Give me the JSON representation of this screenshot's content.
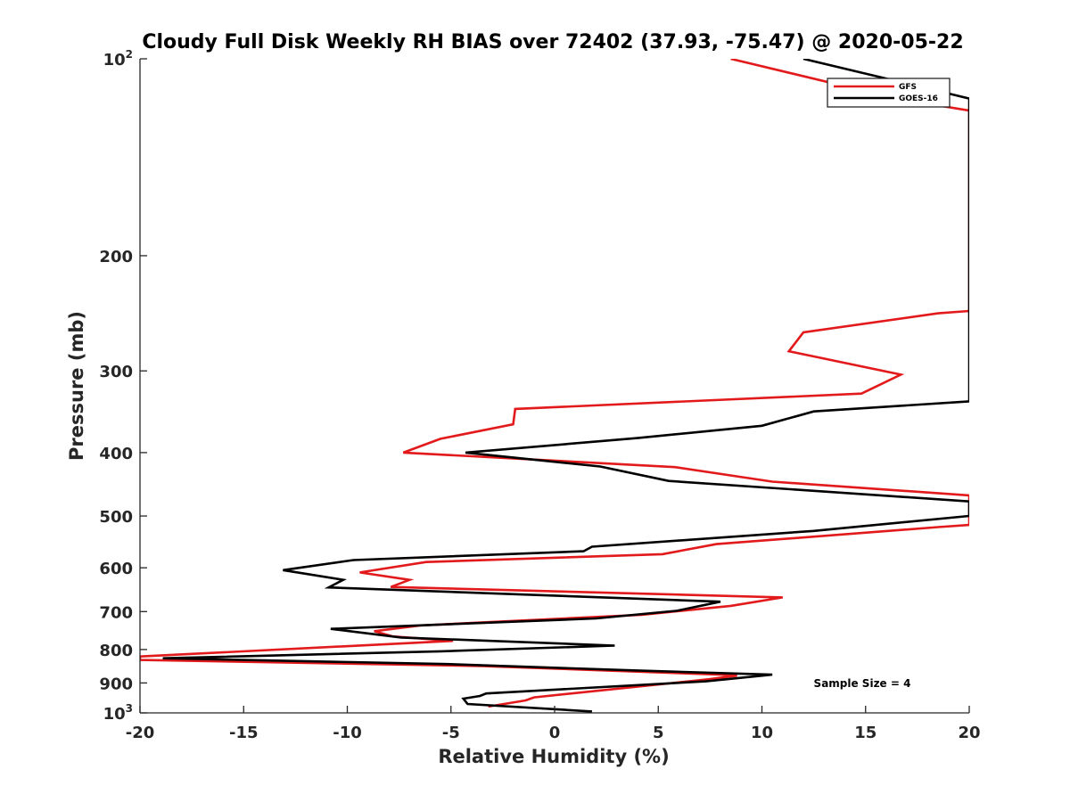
{
  "chart_data": {
    "type": "line",
    "title": "Cloudy Full Disk Weekly RH BIAS over 72402 (37.93, -75.47) @ 2020-05-22",
    "xlabel": "Relative Humidity (%)",
    "ylabel": "Pressure (mb)",
    "xlim": [
      -20,
      20
    ],
    "ylim": [
      100,
      1000
    ],
    "yscale": "log",
    "y_reversed": true,
    "x_ticks": [
      "-20",
      "-15",
      "-10",
      "-5",
      "0",
      "5",
      "10",
      "15",
      "20"
    ],
    "y_ticks": [
      {
        "value": 100,
        "base": "10",
        "exp": "2"
      },
      {
        "value": 200,
        "base": "200",
        "exp": ""
      },
      {
        "value": 300,
        "base": "300",
        "exp": ""
      },
      {
        "value": 400,
        "base": "400",
        "exp": ""
      },
      {
        "value": 500,
        "base": "500",
        "exp": ""
      },
      {
        "value": 600,
        "base": "600",
        "exp": ""
      },
      {
        "value": 700,
        "base": "700",
        "exp": ""
      },
      {
        "value": 800,
        "base": "800",
        "exp": ""
      },
      {
        "value": 900,
        "base": "900",
        "exp": ""
      },
      {
        "value": 1000,
        "base": "10",
        "exp": "3"
      }
    ],
    "grid": false,
    "legend_position": "top-right",
    "annotation": "Sample Size = 4",
    "series": [
      {
        "name": "GFS",
        "color": "#e31a1c",
        "points": [
          [
            8.5,
            100
          ],
          [
            16.5,
            115
          ],
          [
            20,
            120
          ],
          [
            20,
            243
          ],
          [
            18.5,
            245
          ],
          [
            12,
            262
          ],
          [
            11.3,
            280
          ],
          [
            16.7,
            304
          ],
          [
            14.8,
            325
          ],
          [
            -1.9,
            343
          ],
          [
            -2,
            362
          ],
          [
            -5.5,
            381
          ],
          [
            -7.3,
            400
          ],
          [
            5.8,
            421
          ],
          [
            10.5,
            443
          ],
          [
            20,
            465
          ],
          [
            20,
            516
          ],
          [
            18.5,
            520
          ],
          [
            7.8,
            552
          ],
          [
            5.2,
            572
          ],
          [
            -6.2,
            588
          ],
          [
            -9.4,
            610
          ],
          [
            -7,
            626
          ],
          [
            -7.9,
            642
          ],
          [
            11,
            666
          ],
          [
            8.5,
            686
          ],
          [
            4.2,
            708
          ],
          [
            -6.5,
            735
          ],
          [
            -8.7,
            750
          ],
          [
            -7.8,
            764
          ],
          [
            -4.9,
            776
          ],
          [
            -20,
            820
          ],
          [
            -20,
            830
          ],
          [
            -3.5,
            848
          ],
          [
            8,
            874
          ],
          [
            8.8,
            877
          ],
          [
            7.5,
            888
          ],
          [
            -1,
            947
          ],
          [
            -1.4,
            957
          ],
          [
            -3.2,
            978
          ]
        ]
      },
      {
        "name": "GOES-16",
        "color": "#000000",
        "points": [
          [
            12,
            100
          ],
          [
            18.5,
            112
          ],
          [
            20,
            115
          ],
          [
            20,
            334
          ],
          [
            12.5,
            346
          ],
          [
            10,
            364
          ],
          [
            4,
            380
          ],
          [
            -4.3,
            400
          ],
          [
            2.2,
            420
          ],
          [
            5.5,
            442
          ],
          [
            20,
            475
          ],
          [
            20,
            500
          ],
          [
            12.5,
            527
          ],
          [
            1.8,
            557
          ],
          [
            1.4,
            566
          ],
          [
            -9.7,
            584
          ],
          [
            -13.1,
            605
          ],
          [
            -10.2,
            626
          ],
          [
            -10.9,
            643
          ],
          [
            8,
            676
          ],
          [
            5.9,
            698
          ],
          [
            2,
            717
          ],
          [
            -10.8,
            744
          ],
          [
            -7.4,
            767
          ],
          [
            2.9,
            789
          ],
          [
            -5.5,
            805
          ],
          [
            -18.9,
            825
          ],
          [
            -5.2,
            842
          ],
          [
            3.8,
            861
          ],
          [
            10.5,
            874
          ],
          [
            7.3,
            895
          ],
          [
            -3.3,
            934
          ],
          [
            -3.6,
            942
          ],
          [
            -4.4,
            951
          ],
          [
            -4.2,
            969
          ],
          [
            1.8,
            995
          ]
        ]
      }
    ]
  }
}
